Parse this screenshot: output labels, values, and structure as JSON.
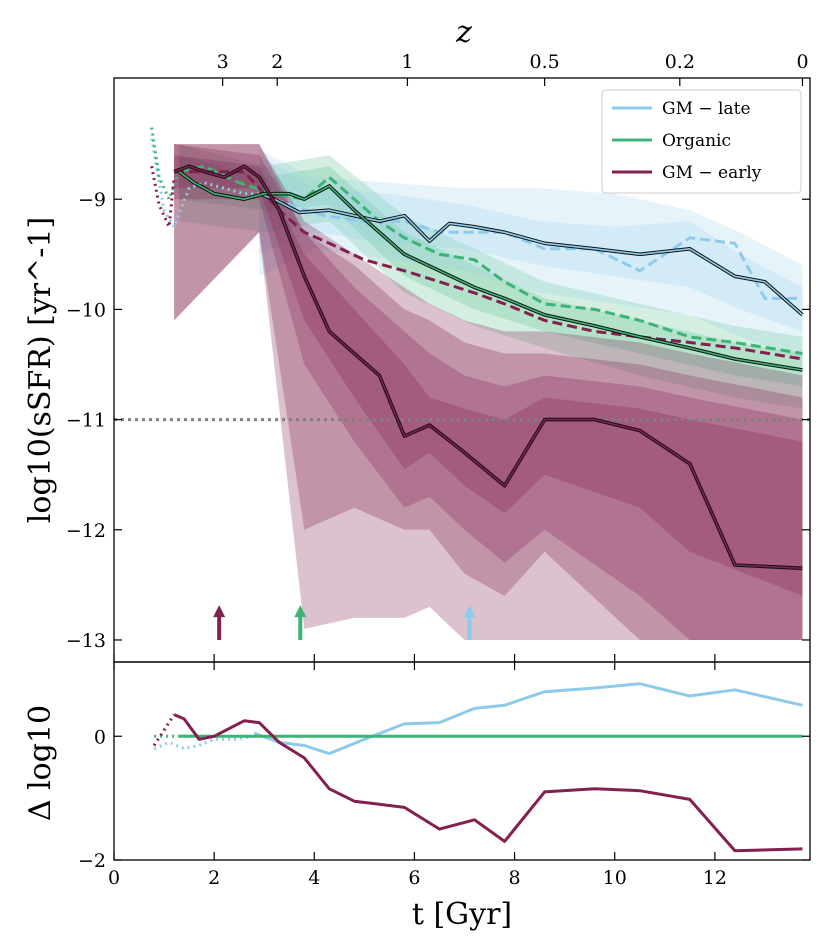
{
  "chart_data": {
    "type": "line",
    "title": "",
    "top_axis": {
      "label": "z",
      "ticks": [
        {
          "label": "3",
          "t": 2.17
        },
        {
          "label": "2",
          "t": 3.26
        },
        {
          "label": "1",
          "t": 5.86
        },
        {
          "label": "0.5",
          "t": 8.6
        },
        {
          "label": "0.2",
          "t": 11.3
        },
        {
          "label": "0",
          "t": 13.75
        }
      ]
    },
    "xlabel": "t [Gyr]",
    "xlim": [
      0,
      13.9
    ],
    "xticks": [
      "0",
      "2",
      "4",
      "6",
      "8",
      "10",
      "12"
    ],
    "main_panel": {
      "ylabel": "log10(sSFR) [yr^-1]",
      "ylim": [
        -13.2,
        -7.9
      ],
      "yticks": [
        "-9",
        "-10",
        "-11",
        "-12",
        "-13"
      ],
      "quench_threshold": -11,
      "legend": [
        "GM − late",
        "Organic",
        "GM − early"
      ],
      "legend_position": "top-right",
      "series": [
        {
          "name": "GM − late",
          "color": "#8ecbea",
          "early_dotted": {
            "x": [
              0.75,
              1.0,
              1.2,
              1.5,
              1.8,
              2.2,
              2.6,
              2.9
            ],
            "y": [
              -8.45,
              -9.1,
              -9.25,
              -8.9,
              -8.85,
              -8.9,
              -8.95,
              -8.95
            ]
          },
          "median": {
            "x": [
              2.9,
              3.2,
              3.7,
              4.3,
              4.8,
              5.3,
              5.8,
              6.3,
              6.7,
              7.2,
              7.8,
              8.6,
              9.6,
              10.5,
              11.5,
              12.4,
              13.0,
              13.75
            ],
            "y": [
              -8.95,
              -9.0,
              -9.12,
              -9.1,
              -9.15,
              -9.2,
              -9.15,
              -9.38,
              -9.22,
              -9.25,
              -9.3,
              -9.4,
              -9.45,
              -9.5,
              -9.45,
              -9.7,
              -9.75,
              -10.05
            ]
          },
          "dashed": {
            "x": [
              2.9,
              3.5,
              4.2,
              5.0,
              5.8,
              6.5,
              7.2,
              7.8,
              8.6,
              9.6,
              10.5,
              11.5,
              12.4,
              13.0,
              13.75
            ],
            "y": [
              -8.95,
              -9.05,
              -9.15,
              -9.2,
              -9.2,
              -9.3,
              -9.3,
              -9.3,
              -9.45,
              -9.45,
              -9.65,
              -9.35,
              -9.4,
              -9.9,
              -9.9
            ]
          },
          "bands": [
            {
              "x": [
                2.9,
                4.0,
                5.5,
                7.0,
                8.5,
                10.0,
                11.5,
                12.5,
                13.75
              ],
              "lo": [
                -9.5,
                -9.3,
                -9.4,
                -9.45,
                -9.6,
                -9.7,
                -9.8,
                -10.0,
                -10.2
              ],
              "hi": [
                -8.6,
                -8.9,
                -8.95,
                -9.05,
                -9.2,
                -9.25,
                -9.2,
                -9.5,
                -9.8
              ]
            },
            {
              "x": [
                2.9,
                4.0,
                5.5,
                7.0,
                8.5,
                10.0,
                11.5,
                12.5,
                13.75
              ],
              "lo": [
                -9.7,
                -9.45,
                -9.55,
                -9.65,
                -9.85,
                -9.95,
                -10.05,
                -10.25,
                -10.45
              ],
              "hi": [
                -8.55,
                -8.8,
                -8.85,
                -8.9,
                -8.9,
                -8.95,
                -9.1,
                -9.3,
                -9.6
              ]
            }
          ]
        },
        {
          "name": "Organic",
          "color": "#3db477",
          "early_dotted": {
            "x": [
              0.75,
              0.9,
              1.1,
              1.3
            ],
            "y": [
              -8.35,
              -8.8,
              -9.0,
              -8.75
            ]
          },
          "median": {
            "x": [
              1.3,
              1.6,
              2.0,
              2.6,
              3.0,
              3.5,
              3.8,
              4.3,
              4.8,
              5.3,
              5.8,
              6.5,
              7.2,
              7.8,
              8.6,
              9.6,
              10.5,
              11.5,
              12.4,
              13.75
            ],
            "y": [
              -8.75,
              -8.85,
              -8.95,
              -9.0,
              -8.95,
              -8.95,
              -9.0,
              -8.88,
              -9.1,
              -9.3,
              -9.5,
              -9.65,
              -9.8,
              -9.9,
              -10.05,
              -10.15,
              -10.25,
              -10.35,
              -10.45,
              -10.55
            ]
          },
          "dashed": {
            "x": [
              1.3,
              1.8,
              2.5,
              3.2,
              3.8,
              4.3,
              4.8,
              5.3,
              5.8,
              6.5,
              7.2,
              7.8,
              8.6,
              9.6,
              10.5,
              11.5,
              12.4,
              13.75
            ],
            "y": [
              -8.75,
              -8.7,
              -8.85,
              -8.95,
              -9.0,
              -8.8,
              -9.0,
              -9.2,
              -9.35,
              -9.5,
              -9.55,
              -9.75,
              -9.95,
              -10.0,
              -10.1,
              -10.25,
              -10.3,
              -10.4
            ]
          },
          "bands": [
            {
              "x": [
                1.3,
                3.0,
                4.3,
                5.8,
                7.2,
                8.6,
                10.5,
                12.4,
                13.75
              ],
              "lo": [
                -9.0,
                -9.1,
                -9.05,
                -9.7,
                -10.0,
                -10.2,
                -10.4,
                -10.6,
                -10.7
              ],
              "hi": [
                -8.6,
                -8.8,
                -8.7,
                -9.3,
                -9.6,
                -9.9,
                -10.1,
                -10.3,
                -10.4
              ]
            },
            {
              "x": [
                1.3,
                3.0,
                4.3,
                5.8,
                7.2,
                8.6,
                10.5,
                12.4,
                13.75
              ],
              "lo": [
                -9.2,
                -9.3,
                -9.2,
                -9.85,
                -10.15,
                -10.35,
                -10.6,
                -10.8,
                -10.9
              ],
              "hi": [
                -8.5,
                -8.7,
                -8.6,
                -9.15,
                -9.45,
                -9.75,
                -9.95,
                -10.15,
                -10.25
              ]
            }
          ]
        },
        {
          "name": "GM − early",
          "color": "#83204f",
          "early_dotted": {
            "x": [
              0.75,
              0.9,
              1.1,
              1.2
            ],
            "y": [
              -8.7,
              -9.05,
              -9.25,
              -8.8
            ]
          },
          "median": {
            "x": [
              1.2,
              1.5,
              1.8,
              2.2,
              2.6,
              2.9,
              3.3,
              3.8,
              4.3,
              4.8,
              5.3,
              5.8,
              6.3,
              7.0,
              7.8,
              8.6,
              9.6,
              10.5,
              11.5,
              12.4,
              13.75
            ],
            "y": [
              -8.75,
              -8.7,
              -8.75,
              -8.8,
              -8.7,
              -8.8,
              -9.1,
              -9.7,
              -10.2,
              -10.4,
              -10.6,
              -11.15,
              -11.05,
              -11.3,
              -11.6,
              -11.0,
              -11.0,
              -11.1,
              -11.4,
              -12.32,
              -12.35
            ]
          },
          "dashed": {
            "x": [
              1.2,
              1.8,
              2.6,
              3.3,
              3.8,
              4.3,
              5.0,
              5.8,
              6.5,
              7.2,
              7.8,
              8.6,
              9.6,
              10.5,
              11.5,
              12.4,
              13.75
            ],
            "y": [
              -8.75,
              -8.75,
              -8.75,
              -9.1,
              -9.3,
              -9.4,
              -9.55,
              -9.65,
              -9.75,
              -9.85,
              -9.95,
              -10.1,
              -10.2,
              -10.25,
              -10.3,
              -10.35,
              -10.45
            ]
          },
          "bands": [
            {
              "x": [
                1.2,
                2.9,
                3.8,
                4.8,
                5.8,
                6.3,
                7.0,
                7.8,
                8.6,
                10.5,
                11.5,
                13.75
              ],
              "lo": [
                -8.9,
                -8.9,
                -10.1,
                -10.8,
                -11.45,
                -11.3,
                -11.6,
                -11.85,
                -11.5,
                -11.8,
                -12.2,
                -12.6
              ],
              "hi": [
                -8.6,
                -8.7,
                -9.5,
                -10.0,
                -10.5,
                -10.8,
                -10.9,
                -11.0,
                -10.8,
                -10.9,
                -11.0,
                -11.2
              ]
            },
            {
              "x": [
                1.2,
                2.9,
                3.8,
                4.8,
                5.8,
                6.3,
                7.0,
                7.8,
                8.6,
                10.5,
                11.5,
                13.75
              ],
              "lo": [
                -9.0,
                -9.0,
                -10.5,
                -11.2,
                -11.8,
                -11.7,
                -12.0,
                -12.3,
                -12.0,
                -12.6,
                -13.0,
                -13.0
              ],
              "hi": [
                -8.5,
                -8.6,
                -9.3,
                -9.8,
                -10.2,
                -10.4,
                -10.6,
                -10.7,
                -10.6,
                -10.7,
                -10.8,
                -11.0
              ]
            },
            {
              "x": [
                1.2,
                2.9,
                3.8,
                4.8,
                5.8,
                6.3,
                7.0,
                7.8,
                8.6,
                10.5,
                11.5,
                13.75
              ],
              "lo": [
                -10.1,
                -9.3,
                -12.0,
                -11.8,
                -12.0,
                -12.0,
                -12.4,
                -12.6,
                -12.2,
                -13.0,
                -13.0,
                -13.0
              ],
              "hi": [
                -8.5,
                -8.5,
                -9.3,
                -9.6,
                -10.0,
                -10.1,
                -10.3,
                -10.4,
                -10.4,
                -10.5,
                -10.6,
                -10.8
              ]
            },
            {
              "x": [
                1.2,
                2.9,
                3.8,
                4.8,
                5.8,
                6.3,
                7.0,
                7.8,
                8.6,
                10.5,
                11.5,
                13.75
              ],
              "lo": [
                -10.1,
                -9.3,
                -12.9,
                -12.8,
                -12.8,
                -12.7,
                -13.0,
                -13.0,
                -13.0,
                -13.0,
                -13.0,
                -13.0
              ],
              "hi": [
                -8.5,
                -8.5,
                -9.2,
                -9.5,
                -9.8,
                -9.95,
                -10.1,
                -10.2,
                -10.2,
                -10.3,
                -10.4,
                -10.6
              ]
            }
          ]
        }
      ],
      "arrows": [
        {
          "t": 2.1,
          "color": "#83204f"
        },
        {
          "t": 3.72,
          "color": "#3db477"
        },
        {
          "t": 7.1,
          "color": "#8ecbea"
        }
      ]
    },
    "residual_panel": {
      "ylabel": "Δ log10",
      "ylim": [
        -2.0,
        1.2
      ],
      "yticks": [
        "0",
        "-2"
      ],
      "series": [
        {
          "name": "GM − late",
          "color": "#8ecbea",
          "dotted": {
            "x": [
              0.8,
              1.1,
              1.4,
              1.7,
              2.0,
              2.4,
              2.8
            ],
            "y": [
              -0.2,
              -0.1,
              -0.2,
              -0.15,
              -0.05,
              -0.05,
              0.0
            ]
          },
          "solid": {
            "x": [
              2.8,
              3.3,
              3.8,
              4.3,
              5.0,
              5.8,
              6.5,
              7.2,
              7.8,
              8.6,
              9.6,
              10.5,
              11.5,
              12.4,
              13.75
            ],
            "y": [
              0.05,
              -0.1,
              -0.15,
              -0.28,
              -0.05,
              0.2,
              0.22,
              0.45,
              0.5,
              0.72,
              0.78,
              0.85,
              0.65,
              0.75,
              0.5
            ]
          }
        },
        {
          "name": "Organic",
          "color": "#3db477",
          "dotted": {
            "x": [
              0.8,
              1.3,
              2.0
            ],
            "y": [
              0.0,
              0.0,
              0.0
            ]
          },
          "solid": {
            "x": [
              1.3,
              13.75
            ],
            "y": [
              0.0,
              0.0
            ]
          }
        },
        {
          "name": "GM − early",
          "color": "#83204f",
          "dotted": {
            "x": [
              0.8,
              1.0,
              1.2
            ],
            "y": [
              -0.15,
              0.1,
              0.35
            ]
          },
          "solid": {
            "x": [
              1.2,
              1.4,
              1.7,
              2.0,
              2.6,
              2.9,
              3.3,
              3.8,
              4.3,
              4.8,
              5.3,
              5.8,
              6.5,
              7.2,
              7.8,
              8.6,
              9.6,
              10.5,
              11.5,
              12.4,
              13.75
            ],
            "y": [
              0.35,
              0.28,
              -0.05,
              0.0,
              0.25,
              0.22,
              -0.1,
              -0.35,
              -0.85,
              -1.05,
              -1.1,
              -1.15,
              -1.5,
              -1.35,
              -1.7,
              -0.9,
              -0.85,
              -0.88,
              -1.02,
              -1.85,
              -1.82
            ]
          }
        }
      ]
    }
  }
}
